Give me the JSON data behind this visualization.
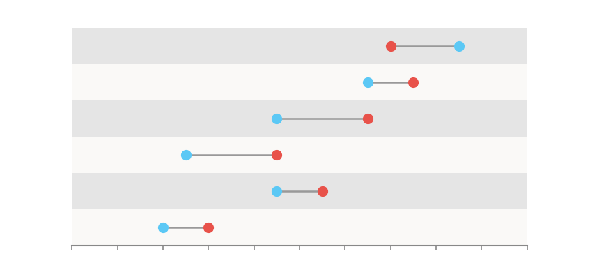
{
  "rows": [
    {
      "blue": 8.5,
      "red": 7.0
    },
    {
      "blue": 6.5,
      "red": 7.5
    },
    {
      "blue": 4.5,
      "red": 6.5
    },
    {
      "blue": 2.5,
      "red": 4.5
    },
    {
      "blue": 4.5,
      "red": 5.5
    },
    {
      "blue": 2.0,
      "red": 3.0
    }
  ],
  "shaded_rows": [
    0,
    2,
    4
  ],
  "xlim": [
    0,
    10
  ],
  "xticks": [
    0,
    1,
    2,
    3,
    4,
    5,
    6,
    7,
    8,
    9,
    10
  ],
  "blue_color": "#5BC8F5",
  "red_color": "#E8524A",
  "line_color": "#999999",
  "shaded_color": "#E5E5E5",
  "plot_bg": "#FAF9F7",
  "outer_bg": "#FFFFFF",
  "marker_size": 120,
  "line_width": 1.8,
  "dot_zorder": 5
}
